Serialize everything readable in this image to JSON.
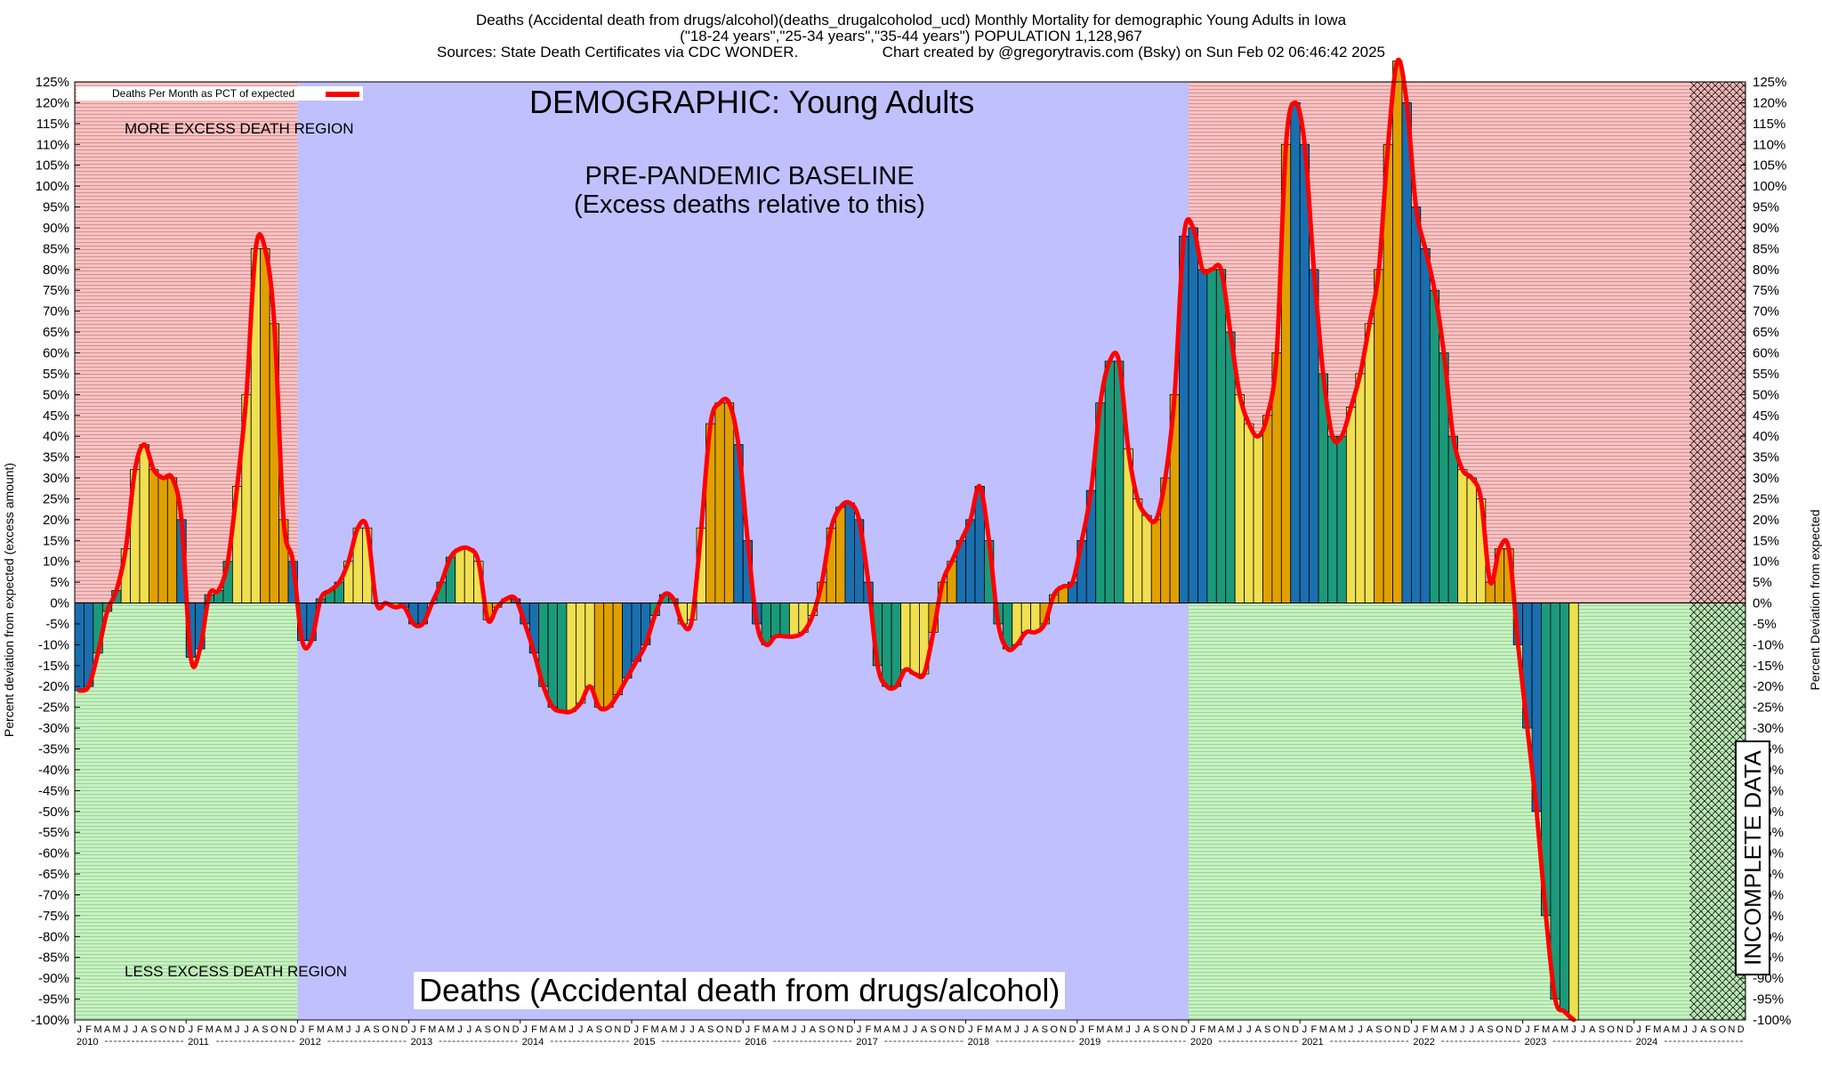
{
  "header": {
    "line1": "Deaths (Accidental death from drugs/alcohol)(deaths_drugalcoholod_ucd) Monthly Mortality for demographic Young Adults in Iowa",
    "line2": "(\"18-24 years\",\"25-34 years\",\"35-44 years\") POPULATION 1,128,967",
    "line3": "Sources: State Death Certificates via CDC WONDER.                    Chart created by @gregorytravis.com (Bsky) on Sun Feb 02 06:46:42 2025"
  },
  "labels": {
    "ylabel_left": "Percent deviation from expected (excess amount)",
    "ylabel_right": "Percent Deviation from expected",
    "more_region": "MORE EXCESS DEATH REGION",
    "less_region": "LESS EXCESS DEATH REGION",
    "demographic": "DEMOGRAPHIC: Young Adults",
    "baseline_line1": "PRE-PANDEMIC BASELINE",
    "baseline_line2": "(Excess deaths relative to this)",
    "bottom_title": "Deaths (Accidental death from drugs/alcohol)",
    "incomplete": "INCOMPLETE DATA",
    "legend": "Deaths Per Month as PCT of expected"
  },
  "colors": {
    "more_region": "#f4c4c4",
    "less_region": "#c8f0c4",
    "baseline_region": "#c0c0ff",
    "line": "#ff0000",
    "bar_winter": "#1a6faf",
    "bar_spring": "#1a9a7a",
    "bar_summer": "#f0e050",
    "bar_fall": "#e0a000"
  },
  "chart_data": {
    "type": "bar",
    "title": "Deaths (Accidental death from drugs/alcohol)(deaths_drugalcoholod_ucd) Monthly Mortality for demographic Young Adults in Iowa",
    "ylabel": "Percent deviation from expected (excess amount)",
    "ylim": [
      -100,
      125
    ],
    "ytick_step": 5,
    "years": [
      "2010",
      "2011",
      "2012",
      "2013",
      "2014",
      "2015",
      "2016",
      "2017",
      "2018",
      "2019",
      "2020",
      "2021",
      "2022",
      "2023",
      "2024"
    ],
    "month_letters": [
      "J",
      "F",
      "M",
      "A",
      "M",
      "J",
      "J",
      "A",
      "S",
      "O",
      "N",
      "D"
    ],
    "series": [
      {
        "name": "Deaths Per Month as PCT of expected",
        "start": "2010-01",
        "values": [
          -21,
          -20,
          -12,
          -2,
          3,
          13,
          32,
          38,
          32,
          30,
          30,
          20,
          -13,
          -11,
          2,
          3,
          10,
          28,
          50,
          85,
          85,
          67,
          20,
          10,
          -9,
          -9,
          1,
          3,
          5,
          10,
          18,
          18,
          0,
          0,
          -1,
          -1,
          -5,
          -5,
          0,
          5,
          11,
          13,
          13,
          10,
          -4,
          -1,
          1,
          1,
          -5,
          -12,
          -20,
          -25,
          -26,
          -26,
          -24,
          -20,
          -25,
          -25,
          -22,
          -18,
          -14,
          -10,
          -3,
          2,
          1,
          -5,
          -4,
          18,
          43,
          48,
          48,
          38,
          15,
          -5,
          -10,
          -8,
          -8,
          -8,
          -7,
          -3,
          5,
          18,
          23,
          24,
          20,
          5,
          -15,
          -20,
          -20,
          -16,
          -17,
          -17,
          -7,
          5,
          10,
          15,
          20,
          28,
          15,
          -5,
          -11,
          -10,
          -7,
          -7,
          -5,
          2,
          4,
          5,
          15,
          27,
          48,
          58,
          58,
          37,
          25,
          21,
          20,
          30,
          50,
          88,
          90,
          80,
          80,
          80,
          65,
          50,
          43,
          40,
          45,
          60,
          110,
          120,
          110,
          80,
          55,
          40,
          40,
          47,
          55,
          67,
          80,
          110,
          130,
          120,
          95,
          85,
          75,
          60,
          40,
          32,
          30,
          25,
          5,
          13,
          13,
          -10,
          -30,
          -50,
          -75,
          -95,
          -98,
          -100
        ]
      }
    ],
    "regions": [
      {
        "name": "MORE EXCESS DEATH REGION",
        "from": "2010-01",
        "to": "2011-12"
      },
      {
        "name": "PRE-PANDEMIC BASELINE",
        "from": "2012-01",
        "to": "2019-12"
      },
      {
        "name": "MORE EXCESS DEATH REGION",
        "from": "2020-01",
        "to": "2024-06"
      },
      {
        "name": "INCOMPLETE DATA",
        "from": "2024-07",
        "to": "2024-12"
      }
    ]
  }
}
